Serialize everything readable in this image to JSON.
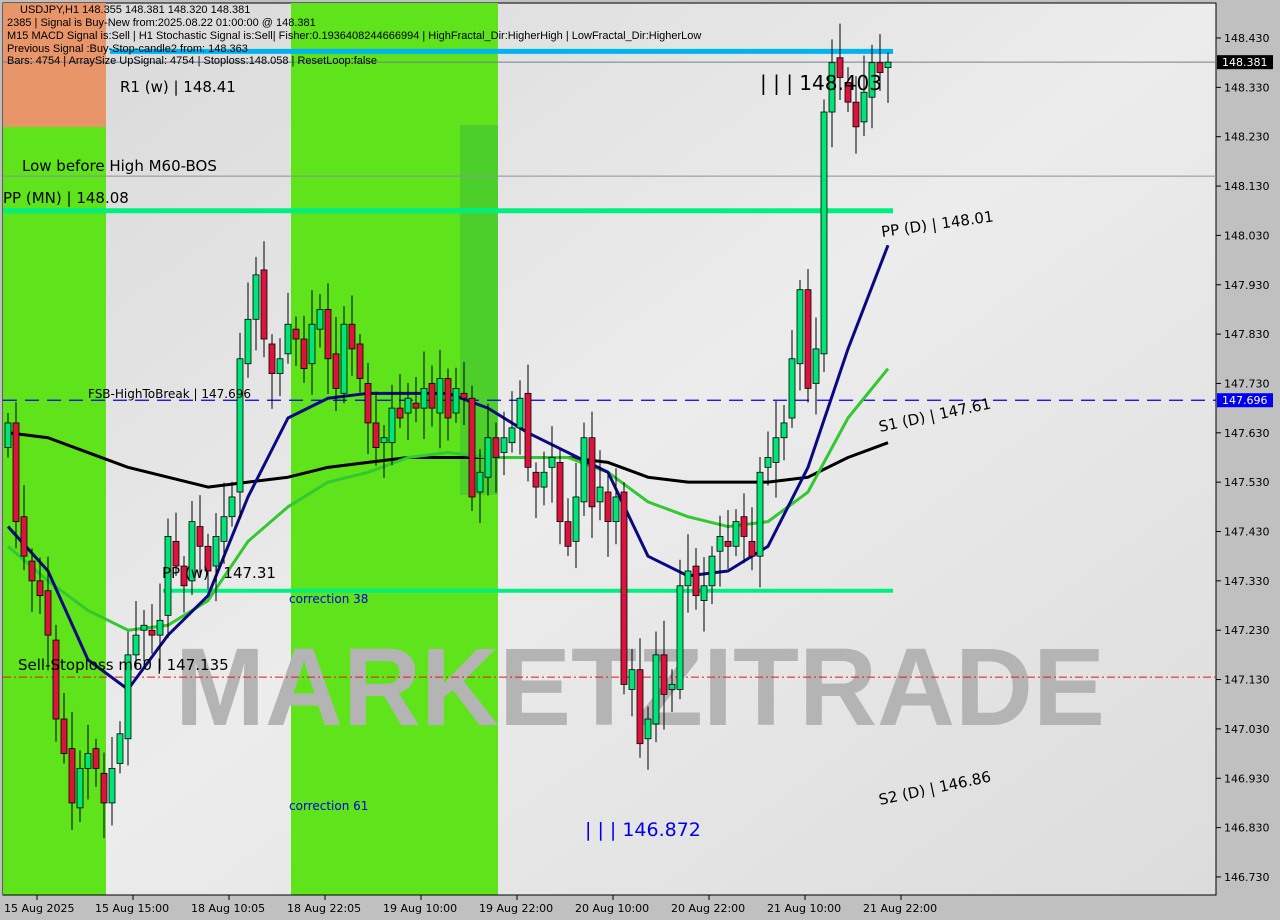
{
  "header": {
    "line1": "USDJPY,H1  148.355 148.381 148.320 148.381",
    "line2": "2385 | Signal is Buy-New from:2025.08.22 01:00:00 @ 148.381",
    "line3": "M15 MACD Signal is:Sell | H1 Stochastic Signal is:Sell| Fisher:0.1936408244666994 | HighFractal_Dir:HigherHigh | LowFractal_Dir:HigherLow",
    "line4": "Previous Signal :Buy-Stop-candle2 from: 148.363",
    "line5": "Bars: 4754 | ArraySize UpSignal: 4754 | Stoploss:148.058 | ResetLoop:false"
  },
  "colors": {
    "bull": "#00e676",
    "bear": "#dc143c",
    "fast_ma": "#0a0a80",
    "mid_ma": "#32c832",
    "slow_ma": "#000000",
    "zone_green": "#5fe31a",
    "zone_orange": "#e8956a",
    "pivot": "#00f080",
    "high_line": "#00b4f0"
  },
  "chart_data": {
    "type": "candlestick",
    "symbol": "USDJPY,H1",
    "ylim": [
      146.68,
      148.48
    ],
    "y_ticks": [
      "148.430",
      "148.330",
      "148.230",
      "148.130",
      "148.030",
      "147.930",
      "147.830",
      "147.730",
      "147.630",
      "147.530",
      "147.430",
      "147.330",
      "147.230",
      "147.130",
      "147.030",
      "146.930",
      "146.830",
      "146.730"
    ],
    "x_ticks": [
      "15 Aug 2025",
      "15 Aug 15:00",
      "18 Aug 10:05",
      "18 Aug 22:05",
      "19 Aug 10:00",
      "19 Aug 22:00",
      "20 Aug 10:00",
      "20 Aug 22:00",
      "21 Aug 10:00",
      "21 Aug 22:00"
    ],
    "current_price": "148.381",
    "fsb_price": "147.696",
    "close": [
      147.65,
      147.45,
      147.38,
      147.33,
      147.3,
      147.22,
      147.05,
      146.98,
      146.88,
      146.95,
      146.98,
      146.95,
      146.88,
      146.95,
      147.02,
      147.18,
      147.22,
      147.24,
      147.22,
      147.25,
      147.42,
      147.36,
      147.32,
      147.45,
      147.4,
      147.35,
      147.42,
      147.46,
      147.5,
      147.78,
      147.86,
      147.95,
      147.82,
      147.75,
      147.78,
      147.85,
      147.82,
      147.76,
      147.85,
      147.88,
      147.78,
      147.72,
      147.85,
      147.8,
      147.74,
      147.65,
      147.6,
      147.62,
      147.68,
      147.66,
      147.7,
      147.68,
      147.72,
      147.68,
      147.74,
      147.66,
      147.72,
      147.7,
      147.5,
      147.55,
      147.62,
      147.58,
      147.62,
      147.64,
      147.7,
      147.56,
      147.52,
      147.55,
      147.58,
      147.45,
      147.4,
      147.5,
      147.62,
      147.48,
      147.52,
      147.45,
      147.5,
      147.12,
      147.15,
      147.0,
      147.05,
      147.18,
      147.1,
      147.12,
      147.32,
      147.35,
      147.3,
      147.32,
      147.38,
      147.42,
      147.4,
      147.45,
      147.42,
      147.38,
      147.55,
      147.58,
      147.62,
      147.65,
      147.78,
      147.92,
      147.72,
      147.8,
      148.28,
      148.38,
      148.35,
      148.3,
      148.25,
      148.32,
      148.38,
      148.36,
      148.381
    ],
    "fast_ma": [
      147.44,
      147.35,
      147.17,
      147.11,
      147.22,
      147.3,
      147.5,
      147.66,
      147.7,
      147.71,
      147.71,
      147.71,
      147.68,
      147.63,
      147.59,
      147.55,
      147.38,
      147.34,
      147.35,
      147.4,
      147.56,
      147.8,
      148.01
    ],
    "mid_ma": [
      147.4,
      147.33,
      147.27,
      147.23,
      147.24,
      147.29,
      147.41,
      147.48,
      147.53,
      147.55,
      147.58,
      147.59,
      147.58,
      147.58,
      147.58,
      147.55,
      147.49,
      147.46,
      147.44,
      147.45,
      147.51,
      147.66,
      147.76
    ],
    "slow_ma": [
      147.63,
      147.62,
      147.59,
      147.56,
      147.54,
      147.52,
      147.53,
      147.54,
      147.56,
      147.57,
      147.58,
      147.58,
      147.58,
      147.58,
      147.58,
      147.57,
      147.54,
      147.53,
      147.53,
      147.53,
      147.54,
      147.58,
      147.61
    ],
    "levels": {
      "pp_mn": {
        "label": "PP (MN) | 148.08",
        "price": 148.08
      },
      "pp_w": {
        "label": "PP (w) | 147.31",
        "price": 147.31
      },
      "r1_w": {
        "label": "R1 (w) | 148.41"
      },
      "fsb": {
        "label": "FSB-HighToBreak | 147.696",
        "price": 147.696
      },
      "stoploss": {
        "label": "Sell-Stoploss m60 | 147.135",
        "price": 147.135
      },
      "high": {
        "label": "| | | 148.403",
        "price": 148.403
      },
      "low": {
        "label": "| | | 146.872",
        "price": 146.872
      },
      "lbh": {
        "label": "Low before High   M60-BOS",
        "price": 148.15
      },
      "pp_d": {
        "label": "PP (D) | 148.01"
      },
      "s1_d": {
        "label": "S1 (D) | 147.61"
      },
      "s2_d": {
        "label": "S2 (D) | 146.86"
      }
    },
    "annotations": [
      "correction 38",
      "correction 61"
    ],
    "watermark": "MARKETZITRADE"
  }
}
